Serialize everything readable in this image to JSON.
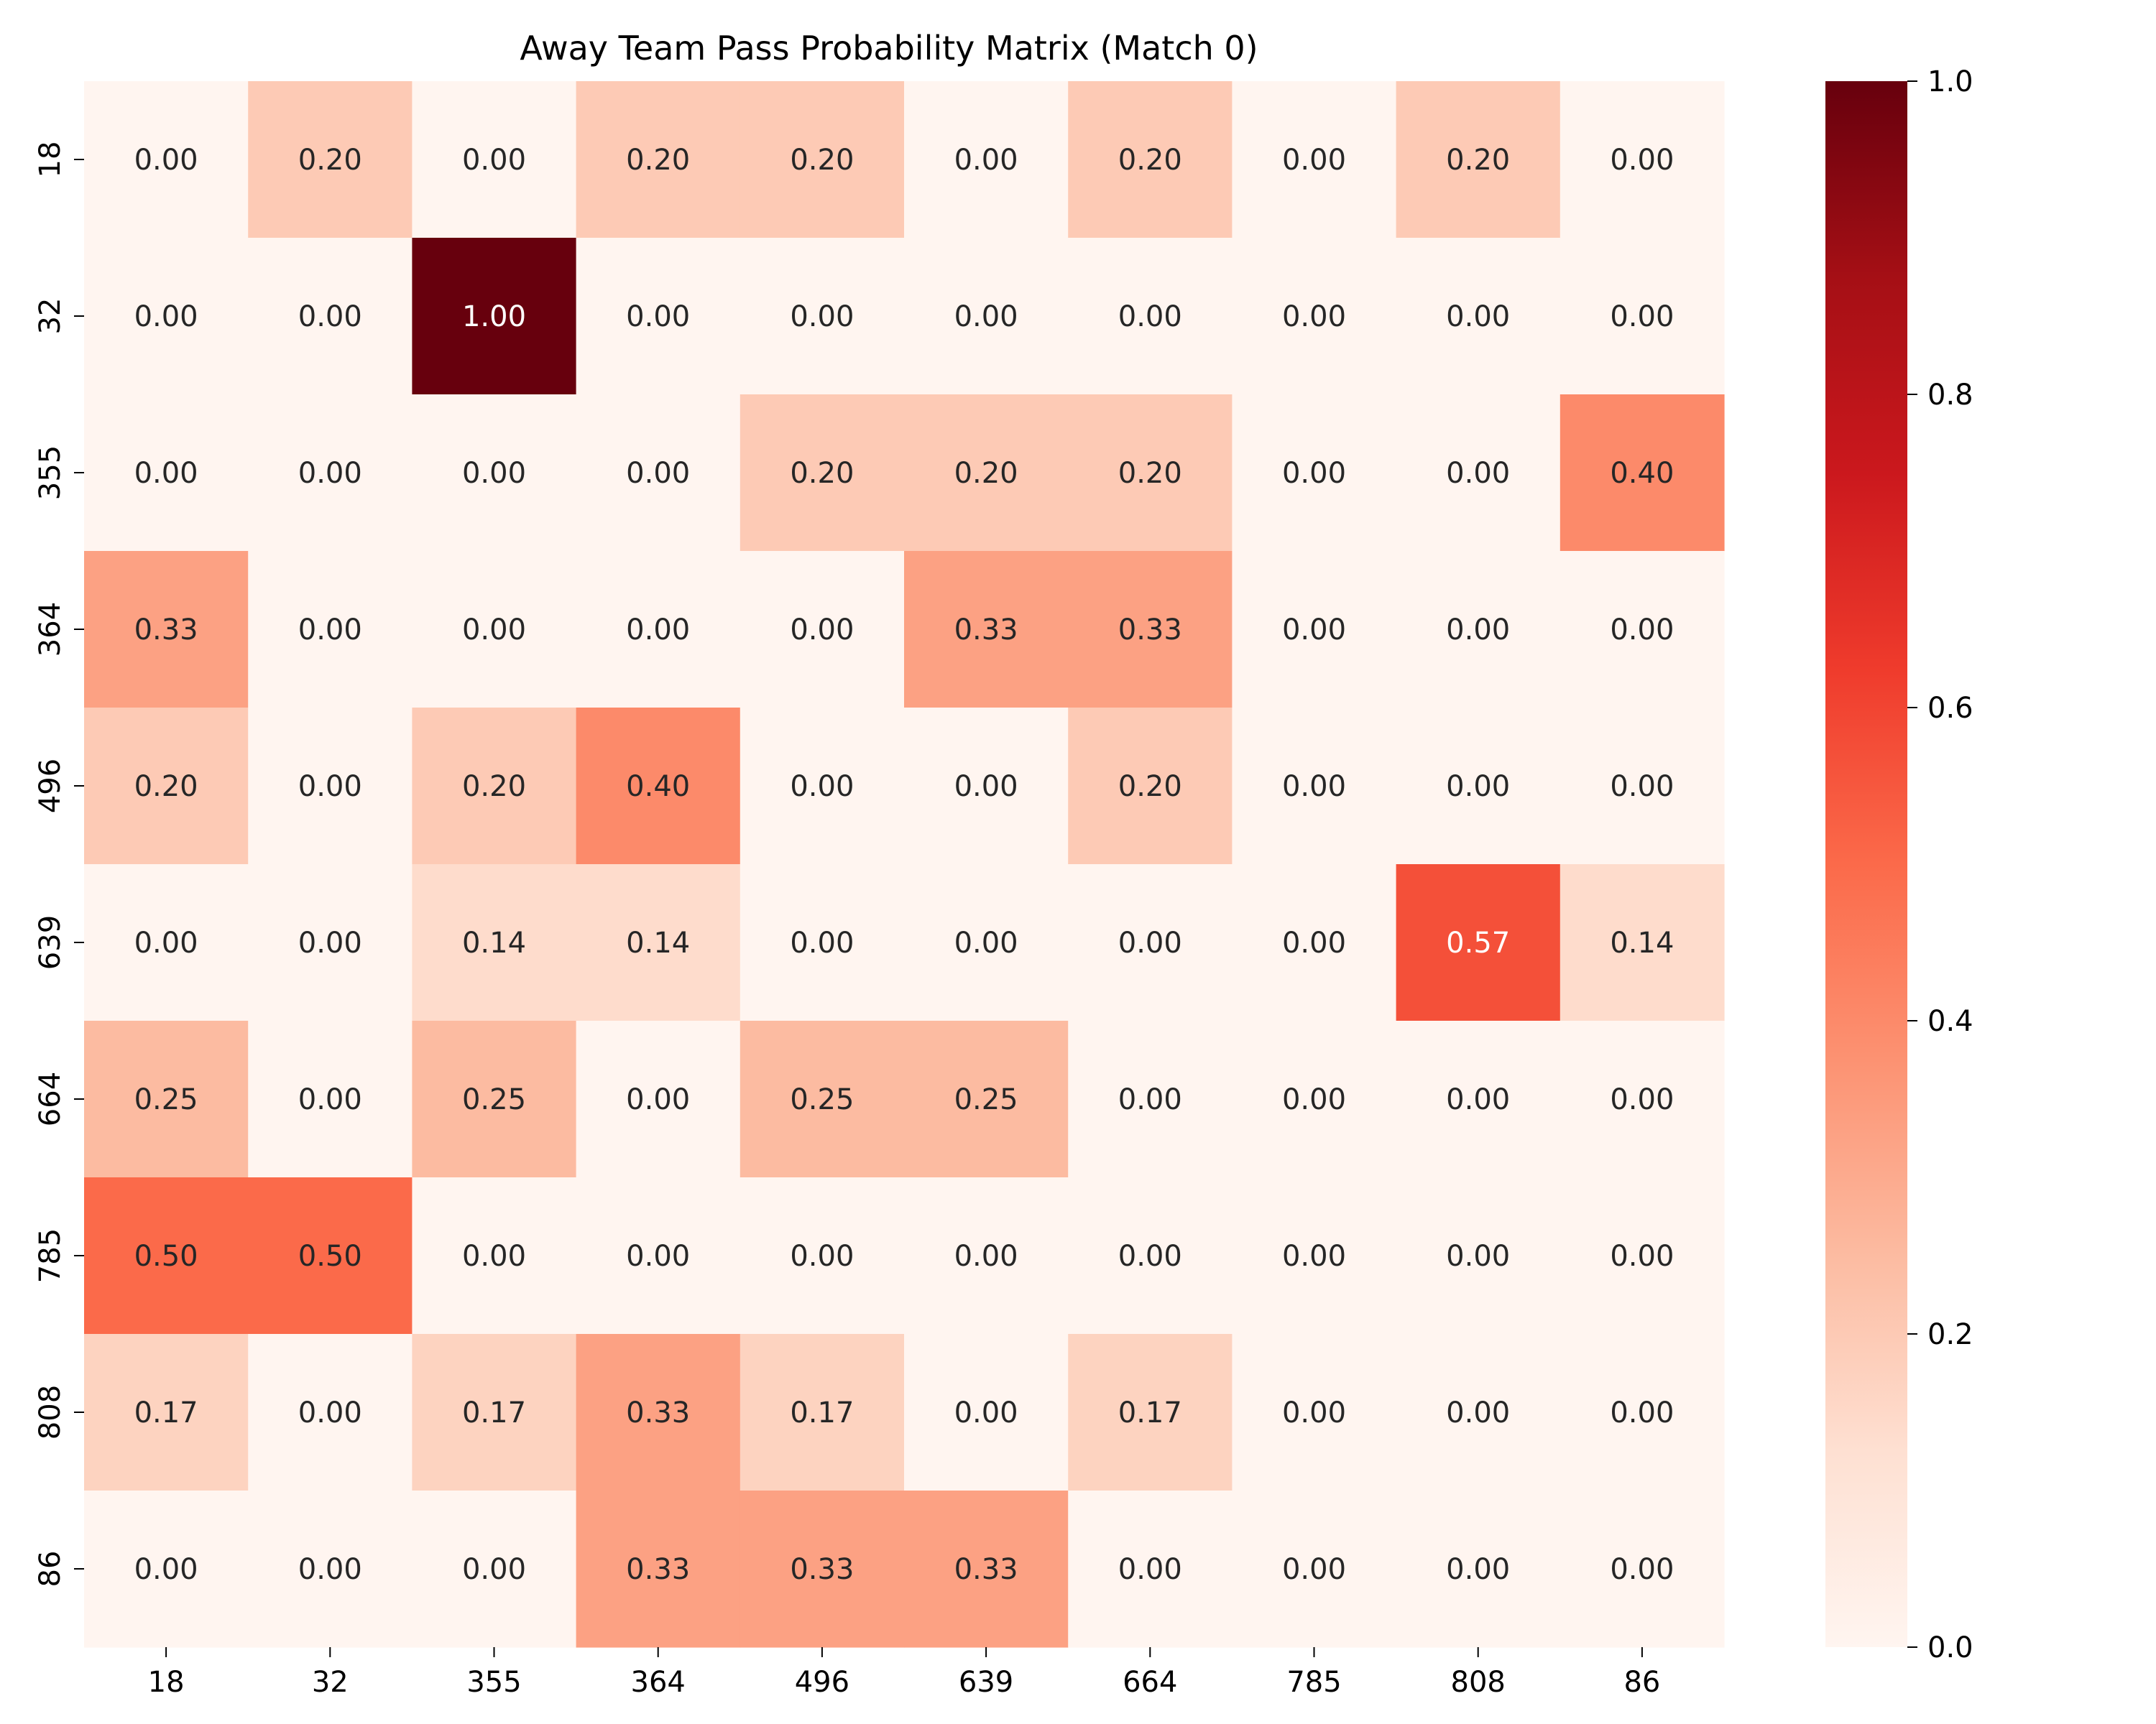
{
  "chart_data": {
    "type": "heatmap",
    "title": "Away Team Pass Probability Matrix (Match 0)",
    "xlabel": "",
    "ylabel": "",
    "x_categories": [
      "18",
      "32",
      "355",
      "364",
      "496",
      "639",
      "664",
      "785",
      "808",
      "86"
    ],
    "y_categories": [
      "18",
      "32",
      "355",
      "364",
      "496",
      "639",
      "664",
      "785",
      "808",
      "86"
    ],
    "values": [
      [
        0.0,
        0.2,
        0.0,
        0.2,
        0.2,
        0.0,
        0.2,
        0.0,
        0.2,
        0.0
      ],
      [
        0.0,
        0.0,
        1.0,
        0.0,
        0.0,
        0.0,
        0.0,
        0.0,
        0.0,
        0.0
      ],
      [
        0.0,
        0.0,
        0.0,
        0.0,
        0.2,
        0.2,
        0.2,
        0.0,
        0.0,
        0.4
      ],
      [
        0.33,
        0.0,
        0.0,
        0.0,
        0.0,
        0.33,
        0.33,
        0.0,
        0.0,
        0.0
      ],
      [
        0.2,
        0.0,
        0.2,
        0.4,
        0.0,
        0.0,
        0.2,
        0.0,
        0.0,
        0.0
      ],
      [
        0.0,
        0.0,
        0.14,
        0.14,
        0.0,
        0.0,
        0.0,
        0.0,
        0.57,
        0.14
      ],
      [
        0.25,
        0.0,
        0.25,
        0.0,
        0.25,
        0.25,
        0.0,
        0.0,
        0.0,
        0.0
      ],
      [
        0.5,
        0.5,
        0.0,
        0.0,
        0.0,
        0.0,
        0.0,
        0.0,
        0.0,
        0.0
      ],
      [
        0.17,
        0.0,
        0.17,
        0.33,
        0.17,
        0.0,
        0.17,
        0.0,
        0.0,
        0.0
      ],
      [
        0.0,
        0.0,
        0.0,
        0.33,
        0.33,
        0.33,
        0.0,
        0.0,
        0.0,
        0.0
      ]
    ],
    "value_format": "0.00",
    "colorbar": {
      "range": [
        0.0,
        1.0
      ],
      "ticks": [
        0.0,
        0.2,
        0.4,
        0.6,
        0.8,
        1.0
      ],
      "tick_labels": [
        "0.0",
        "0.2",
        "0.4",
        "0.6",
        "0.8",
        "1.0"
      ],
      "colormap": "Reds"
    },
    "grid": false,
    "legend": "colorbar-right"
  }
}
